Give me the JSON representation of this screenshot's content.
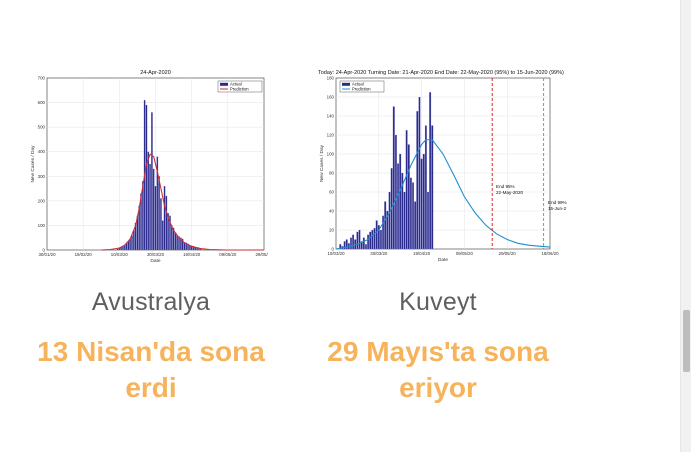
{
  "cards": [
    {
      "country": "Avustralya",
      "status": "13 Nisan'da sona erdi"
    },
    {
      "country": "Kuveyt",
      "status": "29 Mayıs'ta sona eriyor"
    }
  ],
  "chart_data": [
    {
      "type": "bar",
      "title": "24-Apr-2020",
      "xlabel": "Date",
      "ylabel": "New Cases / Day",
      "ylim": [
        0,
        700
      ],
      "yticks": [
        "0",
        "100",
        "200",
        "300",
        "400",
        "500",
        "600",
        "700"
      ],
      "xticks": [
        "30/01/20",
        "19/02/20",
        "10/03/20",
        "30/03/20",
        "19/04/20",
        "09/05/20",
        "29/05/20"
      ],
      "xlim_days": [
        0,
        120
      ],
      "grid": true,
      "legend_position": "top-right",
      "series": [
        {
          "name": "Actual",
          "style": "bar",
          "color": "#2b2b8c",
          "x": [
            39,
            40,
            41,
            42,
            43,
            44,
            45,
            46,
            47,
            48,
            49,
            50,
            51,
            52,
            53,
            54,
            55,
            56,
            57,
            58,
            59,
            60,
            61,
            62,
            63,
            64,
            65,
            66,
            67,
            68,
            69,
            70,
            71,
            72,
            73,
            74,
            75,
            76,
            77,
            78,
            79,
            80,
            81,
            82,
            83,
            84,
            85
          ],
          "values": [
            5,
            8,
            12,
            15,
            20,
            28,
            35,
            45,
            60,
            80,
            110,
            140,
            180,
            230,
            280,
            610,
            590,
            400,
            350,
            560,
            330,
            260,
            380,
            300,
            210,
            120,
            260,
            220,
            150,
            140,
            100,
            90,
            70,
            60,
            55,
            50,
            45,
            30,
            30,
            25,
            20,
            18,
            15,
            12,
            10,
            8,
            5
          ]
        },
        {
          "name": "Prediction",
          "style": "line",
          "color": "#cc2f3b",
          "x": [
            30,
            35,
            40,
            43,
            46,
            49,
            51,
            53,
            55,
            57,
            59,
            61,
            63,
            65,
            67,
            70,
            73,
            76,
            80,
            85,
            90,
            100,
            110,
            120
          ],
          "values": [
            0,
            2,
            8,
            20,
            45,
            100,
            170,
            260,
            350,
            390,
            380,
            320,
            250,
            180,
            130,
            80,
            50,
            30,
            15,
            6,
            2,
            0,
            0,
            0
          ]
        }
      ]
    },
    {
      "type": "bar",
      "title": "Today: 24-Apr-2020   Turning Date: 21-Apr-2020   End Date: 22-May-2020 (95%) to 15-Jun-2020 (99%)",
      "xlabel": "Date",
      "ylabel": "New Cases / Day",
      "ylim": [
        0,
        180
      ],
      "yticks": [
        "0",
        "20",
        "40",
        "60",
        "80",
        "100",
        "120",
        "140",
        "160",
        "180"
      ],
      "xticks": [
        "10/03/20",
        "30/03/20",
        "19/04/20",
        "09/05/20",
        "29/05/20",
        "18/06/20"
      ],
      "xlim_days": [
        0,
        100
      ],
      "grid": true,
      "legend_position": "top-left",
      "annotations": [
        "End 95% on 22-May-2020",
        "End 99% on 15-Jun-2"
      ],
      "series": [
        {
          "name": "Actual",
          "style": "bar",
          "color": "#2b2b8c",
          "x": [
            2,
            3,
            4,
            5,
            6,
            7,
            8,
            9,
            10,
            11,
            12,
            13,
            14,
            15,
            16,
            17,
            18,
            19,
            20,
            21,
            22,
            23,
            24,
            25,
            26,
            27,
            28,
            29,
            30,
            31,
            32,
            33,
            34,
            35,
            36,
            37,
            38,
            39,
            40,
            41,
            42,
            43,
            44,
            45
          ],
          "values": [
            5,
            3,
            8,
            10,
            6,
            12,
            15,
            10,
            18,
            20,
            8,
            12,
            5,
            15,
            18,
            20,
            22,
            30,
            25,
            20,
            35,
            50,
            40,
            60,
            85,
            150,
            120,
            90,
            100,
            80,
            60,
            125,
            110,
            75,
            70,
            50,
            145,
            160,
            95,
            100,
            130,
            60,
            165,
            130
          ]
        },
        {
          "name": "Prediction",
          "style": "line",
          "color": "#1f8fce",
          "x": [
            0,
            5,
            10,
            15,
            20,
            25,
            30,
            35,
            40,
            42,
            45,
            50,
            55,
            60,
            65,
            70,
            75,
            80,
            85,
            90,
            95,
            100
          ],
          "values": [
            0,
            2,
            5,
            10,
            20,
            38,
            62,
            88,
            110,
            115,
            115,
            100,
            78,
            55,
            38,
            25,
            16,
            10,
            6,
            4,
            3,
            2
          ]
        },
        {
          "name": "End 95%",
          "style": "vline",
          "color": "#d62b2b",
          "x": [
            73
          ],
          "values": [
            180
          ]
        },
        {
          "name": "End 99%",
          "style": "vline",
          "color": "#3bcf3b",
          "x": [
            97
          ],
          "values": [
            180
          ]
        }
      ]
    }
  ]
}
